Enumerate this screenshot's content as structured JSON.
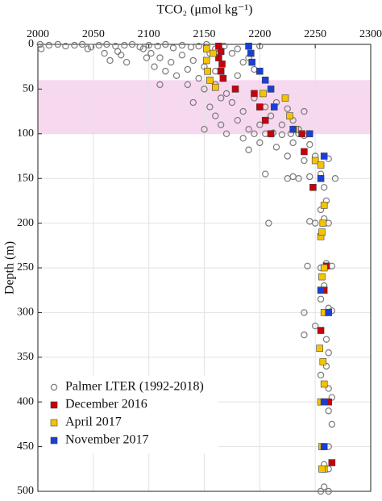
{
  "chart_data": {
    "type": "scatter",
    "xlabel": "TCO₂ (μmol kg⁻¹)",
    "ylabel": "Depth (m)",
    "xlim": [
      2000,
      2300
    ],
    "xticks": [
      2000,
      2050,
      2100,
      2150,
      2200,
      2250,
      2300
    ],
    "ylim": [
      0,
      500
    ],
    "yticks": [
      0,
      50,
      100,
      150,
      200,
      250,
      300,
      350,
      400,
      450,
      500
    ],
    "y_reversed": true,
    "x_axis_position": "top",
    "grid": true,
    "legend": "lower left",
    "highlight": {
      "ylim": [
        40,
        100
      ],
      "color": "#f7d9ef"
    },
    "series": [
      {
        "name": "Palmer LTER (1992-2018)",
        "marker": "circle",
        "color": "#7a7a7a",
        "x": [
          2002,
          2010,
          2018,
          2025,
          2033,
          2040,
          2048,
          2055,
          2062,
          2070,
          2078,
          2085,
          2092,
          2100,
          2108,
          2115,
          2122,
          2130,
          2138,
          2145,
          2152,
          2160,
          2168,
          2003,
          2045,
          2095,
          2060,
          2075,
          2080,
          2065,
          2102,
          2110,
          2120,
          2130,
          2140,
          2150,
          2155,
          2105,
          2115,
          2125,
          2135,
          2145,
          2160,
          2098,
          2072,
          2110,
          2135,
          2150,
          2160,
          2170,
          2180,
          2185,
          2175,
          2190,
          2180,
          2200,
          2195,
          2140,
          2155,
          2165,
          2175,
          2185,
          2195,
          2205,
          2215,
          2225,
          2160,
          2180,
          2200,
          2210,
          2220,
          2230,
          2150,
          2165,
          2190,
          2235,
          2240,
          2170,
          2185,
          2195,
          2205,
          2212,
          2220,
          2228,
          2235,
          2240,
          2245,
          2200,
          2215,
          2230,
          2245,
          2190,
          2225,
          2240,
          2250,
          2262,
          2205,
          2225,
          2230,
          2235,
          2245,
          2255,
          2268,
          2258,
          2260,
          2255,
          2258,
          2245,
          2250,
          2262,
          2208,
          2255,
          2243,
          2255,
          2260,
          2265,
          2258,
          2255,
          2262,
          2240,
          2258,
          2265,
          2250,
          2260,
          2240,
          2262,
          2260,
          2255,
          2262,
          2265,
          2258,
          2262,
          2265,
          2262,
          2258,
          2262,
          2258,
          2262,
          2255
        ],
        "y": [
          0,
          1,
          0,
          2,
          1,
          0,
          3,
          1,
          0,
          2,
          1,
          0,
          3,
          1,
          2,
          0,
          4,
          1,
          3,
          2,
          0,
          5,
          2,
          5,
          5,
          5,
          10,
          12,
          20,
          18,
          10,
          15,
          20,
          12,
          18,
          25,
          10,
          25,
          30,
          35,
          28,
          38,
          30,
          15,
          8,
          45,
          45,
          50,
          45,
          55,
          35,
          20,
          10,
          15,
          5,
          2,
          28,
          65,
          70,
          60,
          65,
          75,
          60,
          70,
          65,
          72,
          80,
          85,
          90,
          80,
          90,
          85,
          95,
          90,
          95,
          95,
          75,
          100,
          105,
          100,
          100,
          99,
          101,
          100,
          100,
          102,
          100,
          110,
          115,
          110,
          112,
          118,
          125,
          130,
          125,
          128,
          145,
          150,
          148,
          150,
          148,
          145,
          150,
          160,
          175,
          185,
          195,
          198,
          200,
          200,
          200,
          215,
          248,
          250,
          245,
          248,
          270,
          285,
          295,
          300,
          300,
          298,
          315,
          330,
          325,
          345,
          360,
          370,
          385,
          395,
          400,
          410,
          425,
          450,
          470,
          475,
          495,
          500,
          500
        ]
      },
      {
        "name": "December 2016",
        "marker": "square",
        "color": "#c8000a",
        "x": [
          2163,
          2165,
          2163,
          2166,
          2165,
          2167,
          2178,
          2195,
          2200,
          2205,
          2210,
          2238,
          2240,
          2248,
          2260,
          2258,
          2262,
          2255,
          2262,
          2265
        ],
        "y": [
          2,
          8,
          15,
          22,
          30,
          38,
          50,
          55,
          70,
          85,
          100,
          100,
          120,
          160,
          248,
          275,
          300,
          320,
          400,
          468
        ]
      },
      {
        "name": "April 2017",
        "marker": "square",
        "color": "#f5c400",
        "x": [
          2152,
          2158,
          2152,
          2153,
          2155,
          2160,
          2203,
          2223,
          2227,
          2232,
          2250,
          2255,
          2258,
          2257,
          2255,
          2256,
          2258,
          2256,
          2258,
          2254,
          2257,
          2258,
          2255,
          2258,
          2256,
          2258,
          2256
        ],
        "y": [
          5,
          10,
          18,
          30,
          40,
          48,
          55,
          60,
          80,
          95,
          130,
          135,
          180,
          200,
          215,
          210,
          250,
          260,
          300,
          340,
          355,
          380,
          400,
          400,
          450,
          475,
          475
        ]
      },
      {
        "name": "November 2017",
        "marker": "square",
        "color": "#1a3fd8",
        "x": [
          2190,
          2192,
          2193,
          2200,
          2205,
          2210,
          2213,
          2230,
          2245,
          2258,
          2255,
          2255,
          2262,
          2258,
          2258
        ],
        "y": [
          2,
          10,
          20,
          30,
          40,
          50,
          70,
          95,
          100,
          125,
          150,
          275,
          300,
          400,
          450
        ]
      }
    ]
  }
}
